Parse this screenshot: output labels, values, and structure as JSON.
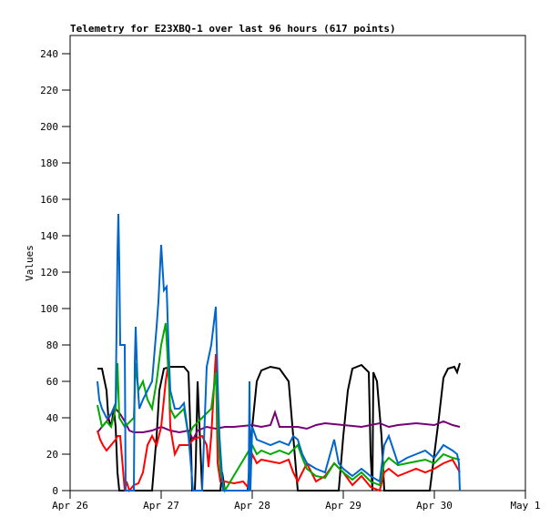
{
  "chart_data": {
    "type": "line",
    "title": "Telemetry for E23XBQ-1 over last 96 hours (617 points)",
    "xlabel": "",
    "ylabel": "Values",
    "xlim": [
      0,
      5
    ],
    "ylim": [
      0,
      250
    ],
    "x_unit": "days since Apr 26",
    "x_ticks": [
      {
        "v": 0,
        "label": "Apr 26"
      },
      {
        "v": 1,
        "label": "Apr 27"
      },
      {
        "v": 2,
        "label": "Apr 28"
      },
      {
        "v": 3,
        "label": "Apr 29"
      },
      {
        "v": 4,
        "label": "Apr 30"
      },
      {
        "v": 5,
        "label": "May 1"
      }
    ],
    "y_ticks": [
      0,
      20,
      40,
      60,
      80,
      100,
      120,
      140,
      160,
      180,
      200,
      220,
      240
    ],
    "grid": false,
    "series": [
      {
        "name": "black",
        "color": "#000000",
        "points": [
          [
            0.3,
            67
          ],
          [
            0.35,
            67
          ],
          [
            0.4,
            55
          ],
          [
            0.42,
            40
          ],
          [
            0.45,
            35
          ],
          [
            0.48,
            45
          ],
          [
            0.5,
            35
          ],
          [
            0.52,
            10
          ],
          [
            0.54,
            0
          ],
          [
            0.9,
            0
          ],
          [
            0.95,
            30
          ],
          [
            0.98,
            55
          ],
          [
            1.03,
            67
          ],
          [
            1.1,
            68
          ],
          [
            1.25,
            68
          ],
          [
            1.3,
            65
          ],
          [
            1.33,
            20
          ],
          [
            1.34,
            0
          ],
          [
            1.37,
            0
          ],
          [
            1.38,
            15
          ],
          [
            1.4,
            60
          ],
          [
            1.45,
            0
          ],
          [
            1.65,
            0
          ],
          [
            1.67,
            10
          ],
          [
            1.7,
            0
          ],
          [
            1.95,
            0
          ],
          [
            2.0,
            35
          ],
          [
            2.05,
            60
          ],
          [
            2.1,
            66
          ],
          [
            2.2,
            68
          ],
          [
            2.3,
            67
          ],
          [
            2.4,
            60
          ],
          [
            2.45,
            30
          ],
          [
            2.5,
            0
          ],
          [
            2.95,
            0
          ],
          [
            3.0,
            30
          ],
          [
            3.05,
            55
          ],
          [
            3.1,
            67
          ],
          [
            3.2,
            69
          ],
          [
            3.28,
            65
          ],
          [
            3.3,
            20
          ],
          [
            3.32,
            0
          ],
          [
            3.33,
            65
          ],
          [
            3.37,
            60
          ],
          [
            3.42,
            30
          ],
          [
            3.45,
            0
          ],
          [
            3.95,
            0
          ],
          [
            4.0,
            20
          ],
          [
            4.05,
            40
          ],
          [
            4.1,
            62
          ],
          [
            4.15,
            67
          ],
          [
            4.22,
            68
          ],
          [
            4.25,
            65
          ],
          [
            4.28,
            70
          ]
        ]
      },
      {
        "name": "purple",
        "color": "#770077",
        "points": [
          [
            0.3,
            32
          ],
          [
            0.35,
            35
          ],
          [
            0.4,
            38
          ],
          [
            0.45,
            42
          ],
          [
            0.5,
            45
          ],
          [
            0.55,
            42
          ],
          [
            0.6,
            38
          ],
          [
            0.65,
            33
          ],
          [
            0.7,
            32
          ],
          [
            0.8,
            32
          ],
          [
            0.9,
            33
          ],
          [
            1.0,
            35
          ],
          [
            1.1,
            33
          ],
          [
            1.2,
            32
          ],
          [
            1.3,
            33
          ],
          [
            1.35,
            28
          ],
          [
            1.4,
            33
          ],
          [
            1.5,
            35
          ],
          [
            1.6,
            34
          ],
          [
            1.7,
            35
          ],
          [
            1.8,
            35
          ],
          [
            2.0,
            36
          ],
          [
            2.1,
            35
          ],
          [
            2.2,
            36
          ],
          [
            2.25,
            43
          ],
          [
            2.3,
            35
          ],
          [
            2.5,
            35
          ],
          [
            2.6,
            34
          ],
          [
            2.7,
            36
          ],
          [
            2.8,
            37
          ],
          [
            3.0,
            36
          ],
          [
            3.2,
            35
          ],
          [
            3.3,
            36
          ],
          [
            3.4,
            37
          ],
          [
            3.5,
            35
          ],
          [
            3.6,
            36
          ],
          [
            3.8,
            37
          ],
          [
            4.0,
            36
          ],
          [
            4.1,
            38
          ],
          [
            4.2,
            36
          ],
          [
            4.28,
            35
          ]
        ]
      },
      {
        "name": "red",
        "color": "#ff0000",
        "points": [
          [
            0.3,
            33
          ],
          [
            0.33,
            28
          ],
          [
            0.36,
            25
          ],
          [
            0.4,
            22
          ],
          [
            0.45,
            25
          ],
          [
            0.5,
            28
          ],
          [
            0.52,
            30
          ],
          [
            0.55,
            30
          ],
          [
            0.6,
            0
          ],
          [
            0.62,
            5
          ],
          [
            0.65,
            0
          ],
          [
            0.7,
            3
          ],
          [
            0.75,
            4
          ],
          [
            0.8,
            10
          ],
          [
            0.85,
            25
          ],
          [
            0.9,
            30
          ],
          [
            0.95,
            25
          ],
          [
            1.0,
            35
          ],
          [
            1.05,
            60
          ],
          [
            1.08,
            70
          ],
          [
            1.1,
            35
          ],
          [
            1.15,
            20
          ],
          [
            1.2,
            25
          ],
          [
            1.3,
            25
          ],
          [
            1.35,
            28
          ],
          [
            1.45,
            30
          ],
          [
            1.5,
            25
          ],
          [
            1.52,
            13
          ],
          [
            1.55,
            30
          ],
          [
            1.6,
            75
          ],
          [
            1.62,
            15
          ],
          [
            1.65,
            5
          ],
          [
            1.7,
            5
          ],
          [
            1.8,
            4
          ],
          [
            1.9,
            5
          ],
          [
            1.95,
            2
          ],
          [
            2.0,
            20
          ],
          [
            2.05,
            15
          ],
          [
            2.1,
            17
          ],
          [
            2.2,
            16
          ],
          [
            2.3,
            15
          ],
          [
            2.4,
            17
          ],
          [
            2.45,
            10
          ],
          [
            2.5,
            5
          ],
          [
            2.6,
            15
          ],
          [
            2.7,
            5
          ],
          [
            2.8,
            8
          ],
          [
            2.9,
            15
          ],
          [
            3.0,
            10
          ],
          [
            3.1,
            3
          ],
          [
            3.2,
            8
          ],
          [
            3.3,
            2
          ],
          [
            3.4,
            0
          ],
          [
            3.45,
            10
          ],
          [
            3.5,
            12
          ],
          [
            3.6,
            8
          ],
          [
            3.7,
            10
          ],
          [
            3.8,
            12
          ],
          [
            3.9,
            10
          ],
          [
            4.0,
            12
          ],
          [
            4.1,
            15
          ],
          [
            4.2,
            17
          ],
          [
            4.28,
            10
          ]
        ]
      },
      {
        "name": "green",
        "color": "#00aa00",
        "points": [
          [
            0.3,
            47
          ],
          [
            0.35,
            35
          ],
          [
            0.4,
            38
          ],
          [
            0.45,
            35
          ],
          [
            0.5,
            45
          ],
          [
            0.52,
            70
          ],
          [
            0.54,
            40
          ],
          [
            0.6,
            35
          ],
          [
            0.7,
            40
          ],
          [
            0.72,
            70
          ],
          [
            0.75,
            55
          ],
          [
            0.8,
            60
          ],
          [
            0.85,
            50
          ],
          [
            0.9,
            45
          ],
          [
            0.95,
            60
          ],
          [
            1.0,
            80
          ],
          [
            1.05,
            92
          ],
          [
            1.1,
            45
          ],
          [
            1.15,
            40
          ],
          [
            1.25,
            45
          ],
          [
            1.3,
            30
          ],
          [
            1.35,
            35
          ],
          [
            1.45,
            40
          ],
          [
            1.55,
            45
          ],
          [
            1.6,
            65
          ],
          [
            1.62,
            35
          ],
          [
            1.65,
            10
          ],
          [
            1.7,
            0
          ],
          [
            2.0,
            25
          ],
          [
            2.05,
            20
          ],
          [
            2.1,
            22
          ],
          [
            2.2,
            20
          ],
          [
            2.3,
            22
          ],
          [
            2.4,
            20
          ],
          [
            2.5,
            25
          ],
          [
            2.55,
            18
          ],
          [
            2.6,
            12
          ],
          [
            2.7,
            8
          ],
          [
            2.8,
            7
          ],
          [
            2.9,
            15
          ],
          [
            3.0,
            10
          ],
          [
            3.1,
            6
          ],
          [
            3.2,
            10
          ],
          [
            3.3,
            5
          ],
          [
            3.4,
            3
          ],
          [
            3.45,
            15
          ],
          [
            3.5,
            18
          ],
          [
            3.6,
            14
          ],
          [
            3.7,
            15
          ],
          [
            3.8,
            16
          ],
          [
            3.9,
            17
          ],
          [
            4.0,
            15
          ],
          [
            4.1,
            20
          ],
          [
            4.2,
            18
          ],
          [
            4.28,
            17
          ]
        ]
      },
      {
        "name": "blue",
        "color": "#0066cc",
        "points": [
          [
            0.3,
            60
          ],
          [
            0.32,
            50
          ],
          [
            0.35,
            45
          ],
          [
            0.4,
            40
          ],
          [
            0.45,
            42
          ],
          [
            0.5,
            48
          ],
          [
            0.52,
            130
          ],
          [
            0.53,
            152
          ],
          [
            0.54,
            125
          ],
          [
            0.55,
            80
          ],
          [
            0.6,
            80
          ],
          [
            0.61,
            0
          ],
          [
            0.7,
            0
          ],
          [
            0.71,
            70
          ],
          [
            0.72,
            90
          ],
          [
            0.74,
            60
          ],
          [
            0.76,
            45
          ],
          [
            0.8,
            50
          ],
          [
            0.85,
            55
          ],
          [
            0.9,
            60
          ],
          [
            0.95,
            90
          ],
          [
            0.97,
            104
          ],
          [
            1.0,
            135
          ],
          [
            1.03,
            110
          ],
          [
            1.06,
            112
          ],
          [
            1.08,
            80
          ],
          [
            1.1,
            55
          ],
          [
            1.15,
            45
          ],
          [
            1.2,
            45
          ],
          [
            1.25,
            48
          ],
          [
            1.3,
            30
          ],
          [
            1.35,
            0
          ],
          [
            1.45,
            0
          ],
          [
            1.5,
            68
          ],
          [
            1.55,
            80
          ],
          [
            1.6,
            101
          ],
          [
            1.62,
            60
          ],
          [
            1.64,
            30
          ],
          [
            1.68,
            0
          ],
          [
            1.96,
            0
          ],
          [
            1.97,
            60
          ],
          [
            1.98,
            0
          ],
          [
            2.0,
            35
          ],
          [
            2.05,
            28
          ],
          [
            2.1,
            27
          ],
          [
            2.2,
            25
          ],
          [
            2.3,
            27
          ],
          [
            2.4,
            25
          ],
          [
            2.45,
            30
          ],
          [
            2.5,
            28
          ],
          [
            2.55,
            20
          ],
          [
            2.6,
            15
          ],
          [
            2.7,
            12
          ],
          [
            2.8,
            10
          ],
          [
            2.9,
            28
          ],
          [
            2.95,
            15
          ],
          [
            3.0,
            12
          ],
          [
            3.1,
            8
          ],
          [
            3.2,
            12
          ],
          [
            3.3,
            8
          ],
          [
            3.4,
            5
          ],
          [
            3.45,
            25
          ],
          [
            3.5,
            30
          ],
          [
            3.6,
            15
          ],
          [
            3.7,
            18
          ],
          [
            3.8,
            20
          ],
          [
            3.9,
            22
          ],
          [
            4.0,
            18
          ],
          [
            4.1,
            25
          ],
          [
            4.2,
            22
          ],
          [
            4.25,
            20
          ],
          [
            4.27,
            15
          ],
          [
            4.28,
            0
          ]
        ]
      }
    ]
  }
}
